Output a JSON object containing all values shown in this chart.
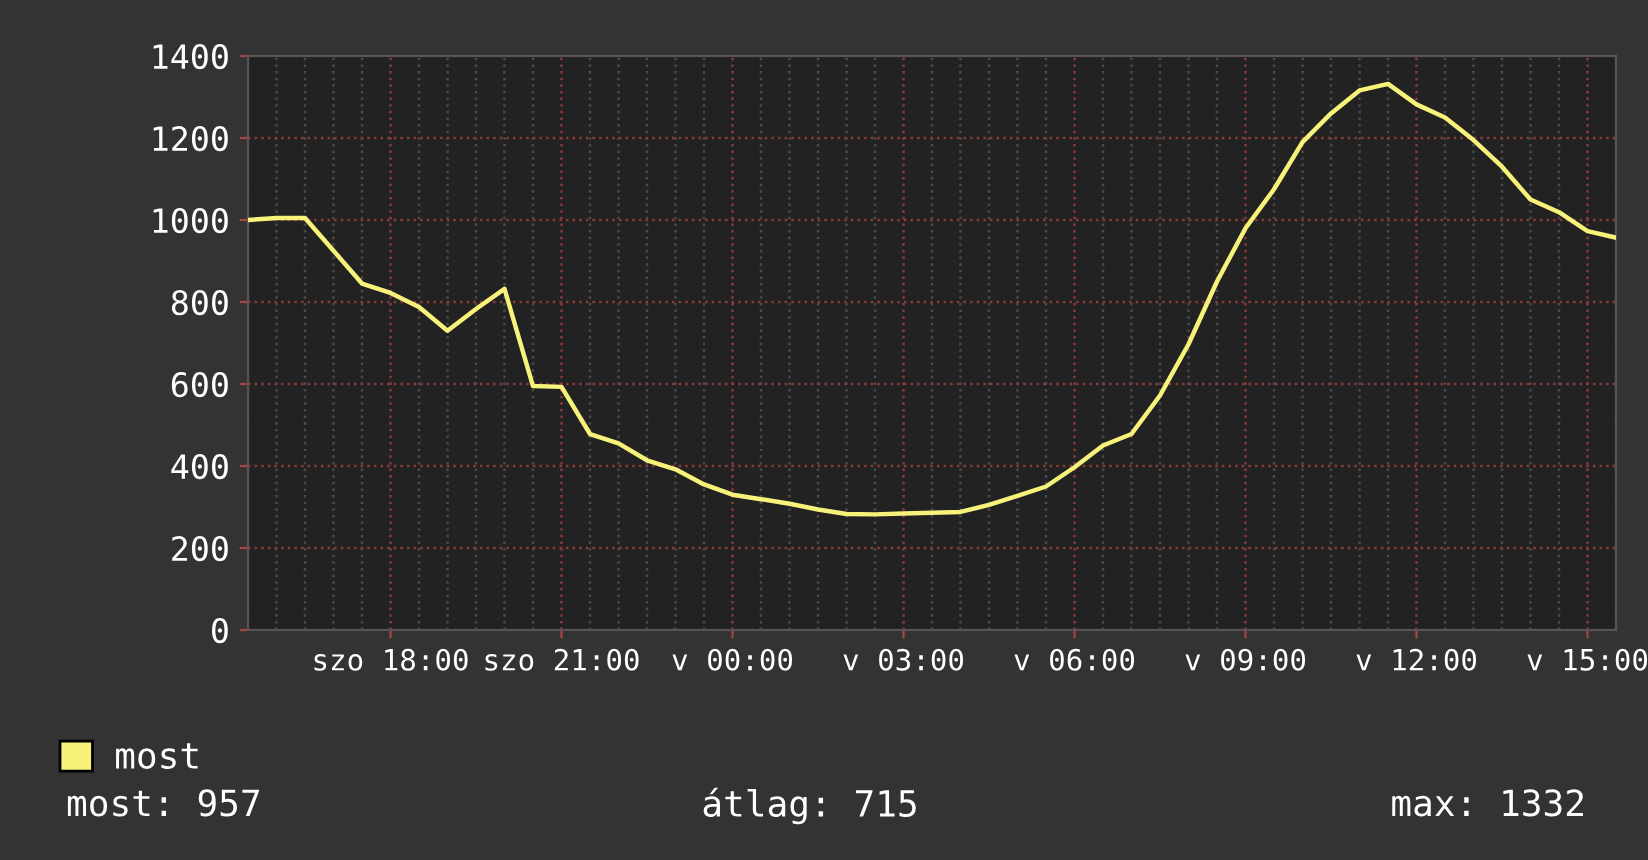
{
  "chart_data": {
    "type": "line",
    "legend": "bottom left",
    "grid": true,
    "line_style": "solid",
    "marker": "none",
    "categories": [
      null,
      null,
      null,
      null,
      null,
      "szo 18:00",
      null,
      null,
      null,
      null,
      null,
      "szo 21:00",
      null,
      null,
      null,
      null,
      null,
      "v 00:00",
      null,
      null,
      null,
      null,
      null,
      "v 03:00",
      null,
      null,
      null,
      null,
      null,
      "v 06:00",
      null,
      null,
      null,
      null,
      null,
      "v 09:00",
      null,
      null,
      null,
      null,
      null,
      "v 12:00",
      null,
      null,
      null,
      null,
      null,
      "v 15:00",
      null
    ],
    "series": [
      {
        "name": "most",
        "color": "#f7f27a",
        "values": [
          1000,
          1005,
          1005,
          925,
          845,
          822,
          788,
          730,
          783,
          832,
          595,
          593,
          478,
          455,
          414,
          392,
          355,
          330,
          319,
          308,
          294,
          283,
          282,
          284,
          286,
          288,
          305,
          327,
          350,
          397,
          450,
          478,
          572,
          697,
          850,
          980,
          1075,
          1190,
          1260,
          1316,
          1332,
          1282,
          1250,
          1195,
          1130,
          1050,
          1019,
          973,
          957
        ]
      }
    ],
    "ylim": [
      0,
      1400
    ],
    "yticks": [
      0,
      200,
      400,
      600,
      800,
      1000,
      1200,
      1400
    ],
    "annotations": [
      "most: 957",
      "átlag: 715",
      "max: 1332"
    ]
  }
}
